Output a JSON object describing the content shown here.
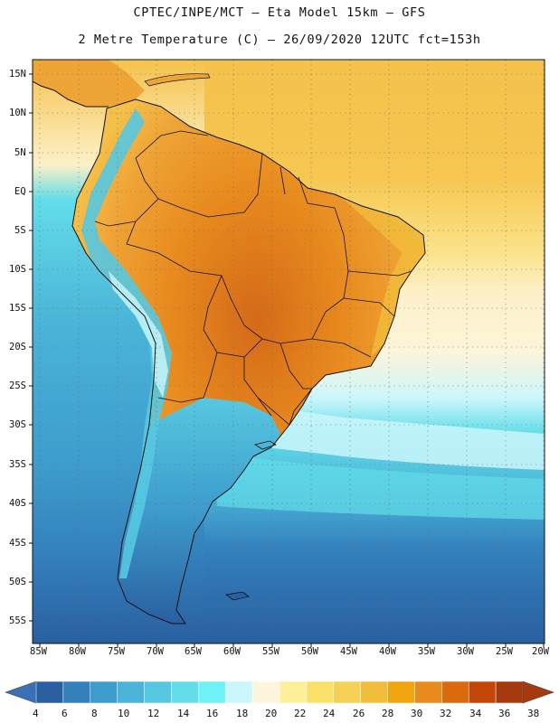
{
  "header": {
    "line1": "CPTEC/INPE/MCT –  Eta Model 15km – GFS",
    "line2": "2 Metre Temperature (C) – 26/09/2020 12UTC fct=153h"
  },
  "lat_labels": [
    "15N",
    "10N",
    "5N",
    "EQ",
    "5S",
    "10S",
    "15S",
    "20S",
    "25S",
    "30S",
    "35S",
    "40S",
    "45S",
    "50S",
    "55S"
  ],
  "lon_labels": [
    "85W",
    "80W",
    "75W",
    "70W",
    "65W",
    "60W",
    "55W",
    "50W",
    "45W",
    "40W",
    "35W",
    "30W",
    "25W",
    "20W"
  ],
  "colorbar": {
    "labels": [
      "4",
      "6",
      "8",
      "10",
      "12",
      "14",
      "16",
      "18",
      "20",
      "22",
      "24",
      "26",
      "28",
      "30",
      "32",
      "34",
      "36",
      "38"
    ],
    "colors": [
      "#2a5fa0",
      "#3380bd",
      "#3d9ccc",
      "#4bb4d8",
      "#57c8e1",
      "#62dde9",
      "#6ef2f6",
      "#cbf6fb",
      "#fdf5db",
      "#fef09a",
      "#fbe06a",
      "#f7d056",
      "#f1bd3b",
      "#f1a50f",
      "#e88a1e",
      "#db6a0c",
      "#c3450a",
      "#a6390d"
    ]
  },
  "map": {
    "land_colors": {
      "hot": "#e27c1f",
      "warm": "#efa436",
      "mild": "#f4c04a",
      "cool_andes": "#55c6de"
    },
    "ocean_colors": {
      "tropical": "#f5c24b",
      "subtropical": "#fdf5db",
      "mid": "#57c8e1",
      "south": "#3380bd",
      "far_south": "#2a5fa0"
    }
  }
}
